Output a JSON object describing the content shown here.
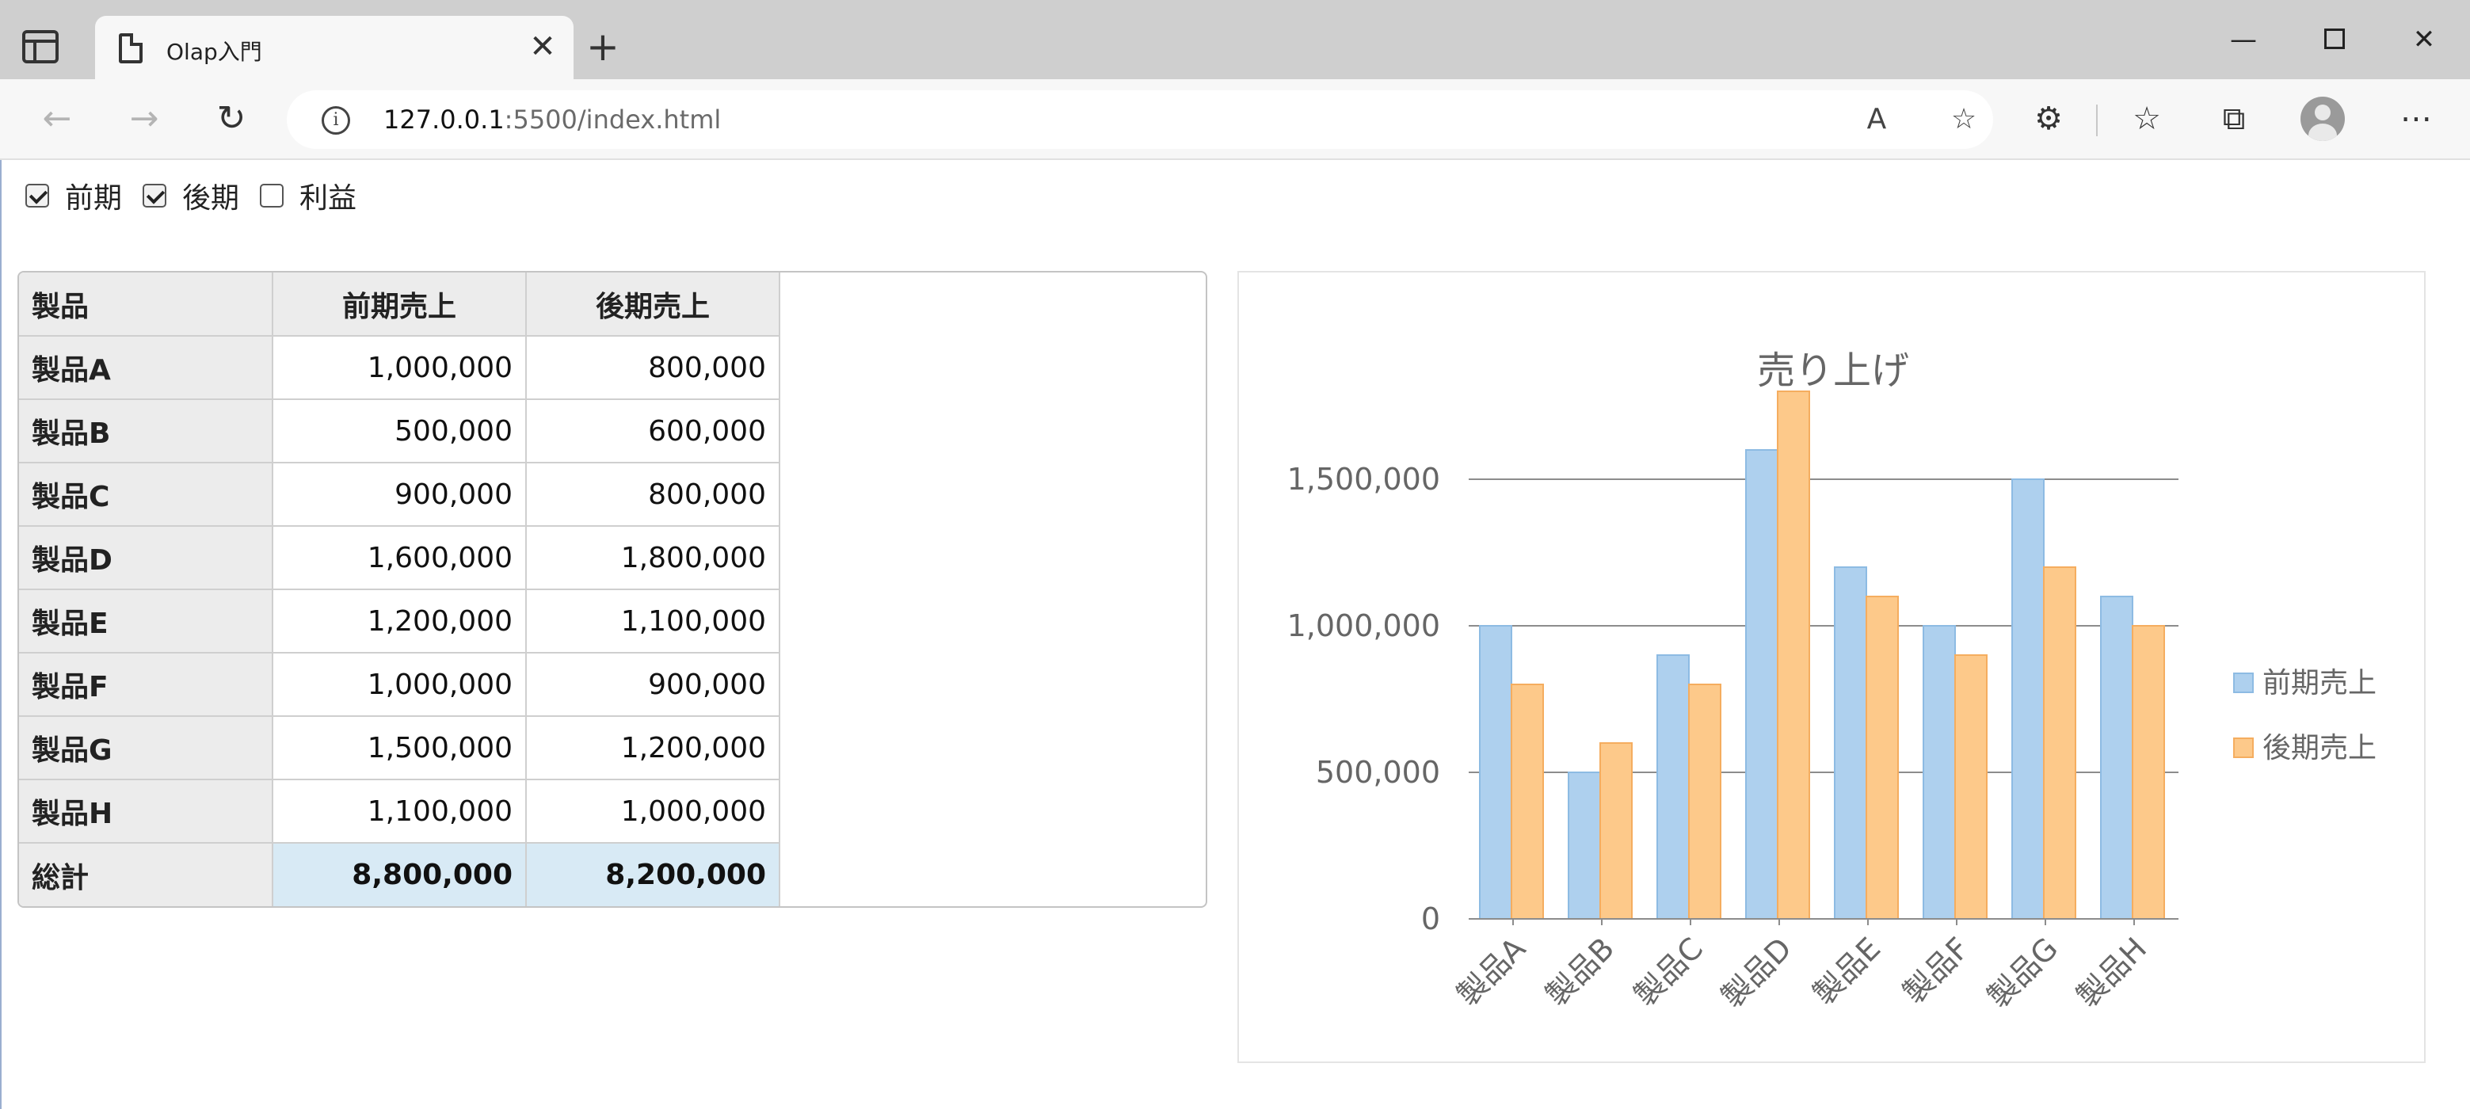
{
  "browser": {
    "tab_title": "Olap入門",
    "url_host": "127.0.0.1",
    "url_path": ":5500/index.html"
  },
  "filters": [
    {
      "label": "前期",
      "checked": true
    },
    {
      "label": "後期",
      "checked": true
    },
    {
      "label": "利益",
      "checked": false
    }
  ],
  "grid": {
    "headers": [
      "製品",
      "前期売上",
      "後期売上"
    ],
    "rows": [
      {
        "product": "製品A",
        "first": "1,000,000",
        "second": "800,000"
      },
      {
        "product": "製品B",
        "first": "500,000",
        "second": "600,000"
      },
      {
        "product": "製品C",
        "first": "900,000",
        "second": "800,000"
      },
      {
        "product": "製品D",
        "first": "1,600,000",
        "second": "1,800,000"
      },
      {
        "product": "製品E",
        "first": "1,200,000",
        "second": "1,100,000"
      },
      {
        "product": "製品F",
        "first": "1,000,000",
        "second": "900,000"
      },
      {
        "product": "製品G",
        "first": "1,500,000",
        "second": "1,200,000"
      },
      {
        "product": "製品H",
        "first": "1,100,000",
        "second": "1,000,000"
      }
    ],
    "total": {
      "label": "総計",
      "first": "8,800,000",
      "second": "8,200,000"
    }
  },
  "chart_data": {
    "type": "bar",
    "title": "売り上げ",
    "categories": [
      "製品A",
      "製品B",
      "製品C",
      "製品D",
      "製品E",
      "製品F",
      "製品G",
      "製品H"
    ],
    "series": [
      {
        "name": "前期売上",
        "values": [
          1000000,
          500000,
          900000,
          1600000,
          1200000,
          1000000,
          1500000,
          1100000
        ],
        "color": "#aed0ee",
        "stroke": "#8dbbe3"
      },
      {
        "name": "後期売上",
        "values": [
          800000,
          600000,
          800000,
          1800000,
          1100000,
          900000,
          1200000,
          1000000
        ],
        "color": "#fdc98a",
        "stroke": "#f5ad5f"
      }
    ],
    "yticks": [
      "0",
      "500,000",
      "1,000,000",
      "1,500,000"
    ],
    "ylim": [
      0,
      1800000
    ],
    "grid": true,
    "legend": "right"
  }
}
